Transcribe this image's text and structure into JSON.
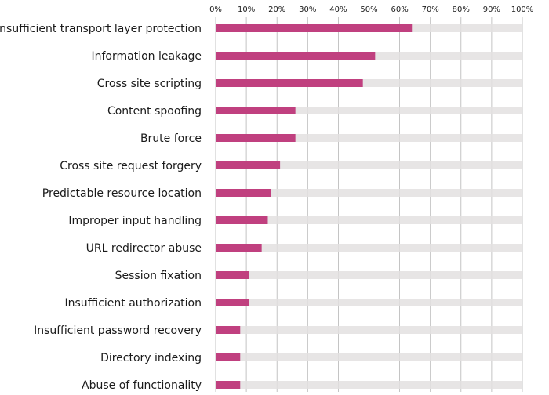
{
  "chart_data": {
    "type": "bar",
    "orientation": "horizontal",
    "categories": [
      "Insufficient transport layer protection",
      "Information leakage",
      "Cross site scripting",
      "Content spoofing",
      "Brute force",
      "Cross site request forgery",
      "Predictable resource location",
      "Improper input handling",
      "URL redirector abuse",
      "Session fixation",
      "Insufficient authorization",
      "Insufficient password recovery",
      "Directory indexing",
      "Abuse of functionality"
    ],
    "values": [
      64,
      52,
      48,
      26,
      26,
      21,
      18,
      17,
      15,
      11,
      11,
      8,
      8,
      8
    ],
    "xlim": [
      0,
      100
    ],
    "x_ticks": [
      "0%",
      "10%",
      "20%",
      "30%",
      "40%",
      "50%",
      "60%",
      "70%",
      "80%",
      "90%",
      "100%"
    ],
    "x_axis_position": "top",
    "grid": true,
    "colors": {
      "bar": "#c0407f",
      "track": "#e3e0e0",
      "grid": "#b5b5b5"
    }
  }
}
